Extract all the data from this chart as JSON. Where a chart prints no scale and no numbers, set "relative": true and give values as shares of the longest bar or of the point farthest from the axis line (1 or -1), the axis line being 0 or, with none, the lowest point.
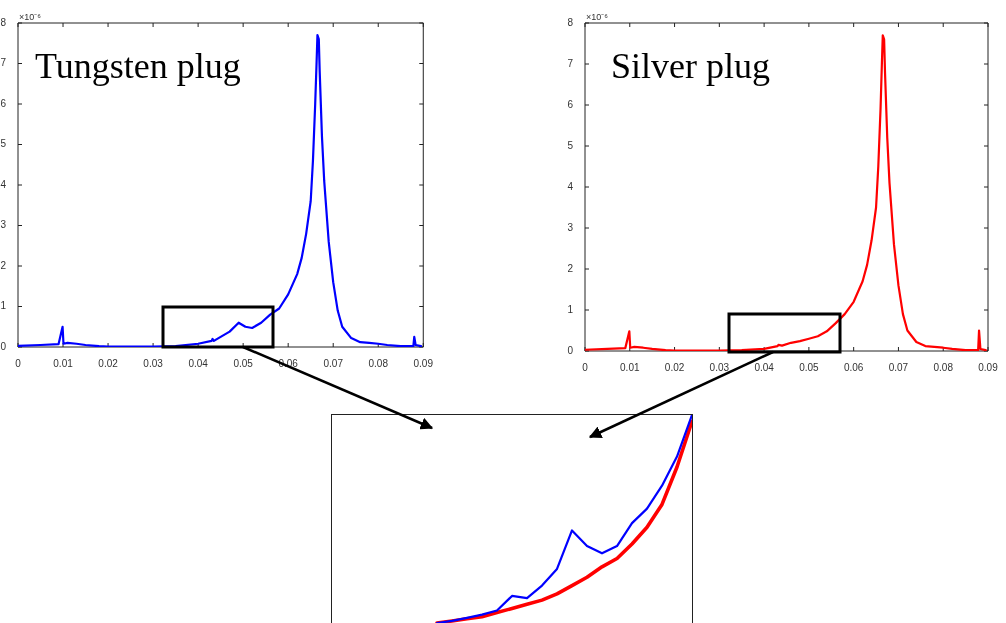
{
  "chart_data": [
    {
      "type": "line",
      "title": "Tungsten plug",
      "annotations": [
        "×10⁻⁶"
      ],
      "xlim": [
        0,
        0.09
      ],
      "xticks": [
        0,
        0.01,
        0.02,
        0.03,
        0.04,
        0.05,
        0.06,
        0.07,
        0.08,
        0.09
      ],
      "ylim": [
        0,
        8
      ],
      "yticks": [
        0,
        1,
        2,
        3,
        4,
        5,
        6,
        7,
        8
      ],
      "series": [
        {
          "color": "#0000ff",
          "x": [
            0,
            0.005,
            0.009,
            0.0099,
            0.0101,
            0.011,
            0.013,
            0.015,
            0.018,
            0.02,
            0.025,
            0.03,
            0.035,
            0.04,
            0.043,
            0.0432,
            0.0435,
            0.045,
            0.047,
            0.049,
            0.0505,
            0.052,
            0.054,
            0.056,
            0.058,
            0.06,
            0.062,
            0.063,
            0.064,
            0.065,
            0.0655,
            0.066,
            0.0663,
            0.0665,
            0.0668,
            0.067,
            0.0675,
            0.068,
            0.069,
            0.07,
            0.071,
            0.072,
            0.074,
            0.076,
            0.078,
            0.08,
            0.082,
            0.085,
            0.0878,
            0.088,
            0.0883,
            0.0895
          ],
          "values": [
            0.03,
            0.05,
            0.07,
            0.5,
            0.08,
            0.1,
            0.08,
            0.05,
            0.02,
            0.01,
            0.01,
            0.01,
            0.02,
            0.08,
            0.15,
            0.2,
            0.15,
            0.25,
            0.38,
            0.6,
            0.5,
            0.47,
            0.6,
            0.8,
            0.95,
            1.3,
            1.8,
            2.2,
            2.8,
            3.6,
            4.6,
            6.0,
            7.0,
            7.7,
            7.6,
            6.8,
            5.2,
            4.1,
            2.6,
            1.6,
            0.9,
            0.5,
            0.22,
            0.12,
            0.1,
            0.08,
            0.05,
            0.02,
            0.02,
            0.25,
            0.05,
            0.02
          ]
        }
      ]
    },
    {
      "type": "line",
      "title": "Silver plug",
      "annotations": [
        "×10⁻⁶"
      ],
      "xlim": [
        0,
        0.09
      ],
      "xticks": [
        0,
        0.01,
        0.02,
        0.03,
        0.04,
        0.05,
        0.06,
        0.07,
        0.08,
        0.09
      ],
      "ylim": [
        0,
        8
      ],
      "yticks": [
        0,
        1,
        2,
        3,
        4,
        5,
        6,
        7,
        8
      ],
      "series": [
        {
          "color": "#ff0000",
          "x": [
            0,
            0.005,
            0.009,
            0.0099,
            0.0101,
            0.011,
            0.013,
            0.015,
            0.018,
            0.02,
            0.025,
            0.03,
            0.035,
            0.04,
            0.043,
            0.0432,
            0.044,
            0.046,
            0.048,
            0.05,
            0.052,
            0.054,
            0.056,
            0.058,
            0.06,
            0.062,
            0.063,
            0.064,
            0.065,
            0.0655,
            0.066,
            0.0663,
            0.0665,
            0.0668,
            0.067,
            0.0675,
            0.068,
            0.069,
            0.07,
            0.071,
            0.072,
            0.074,
            0.076,
            0.078,
            0.08,
            0.082,
            0.085,
            0.0878,
            0.088,
            0.0883,
            0.0895
          ],
          "values": [
            0.03,
            0.05,
            0.07,
            0.48,
            0.08,
            0.1,
            0.08,
            0.05,
            0.02,
            0.01,
            0.01,
            0.01,
            0.02,
            0.05,
            0.12,
            0.15,
            0.13,
            0.2,
            0.24,
            0.3,
            0.36,
            0.48,
            0.68,
            0.9,
            1.2,
            1.7,
            2.1,
            2.7,
            3.5,
            4.5,
            5.9,
            7.0,
            7.7,
            7.6,
            6.8,
            5.2,
            4.1,
            2.6,
            1.6,
            0.9,
            0.5,
            0.22,
            0.12,
            0.1,
            0.08,
            0.05,
            0.02,
            0.02,
            0.5,
            0.05,
            0.02
          ]
        }
      ]
    },
    {
      "type": "line",
      "relative": true,
      "categories": [
        null,
        null,
        null,
        null,
        null,
        null,
        null,
        null,
        null,
        null,
        null,
        null,
        null,
        null,
        null,
        null,
        null,
        null,
        null,
        null,
        null,
        null,
        null,
        null,
        null
      ],
      "series": [
        {
          "color": "#0000ff",
          "values": [
            null,
            null,
            null,
            null,
            null,
            null,
            null,
            0,
            0.01,
            0.025,
            0.04,
            0.06,
            0.13,
            0.12,
            0.18,
            0.26,
            0.445,
            0.37,
            0.335,
            0.37,
            0.48,
            0.55,
            0.66,
            0.8,
            1
          ]
        },
        {
          "color": "#ff0000",
          "values": [
            null,
            null,
            null,
            null,
            null,
            null,
            null,
            0,
            0.01,
            0.02,
            0.03,
            0.05,
            0.07,
            0.09,
            0.11,
            0.14,
            0.18,
            0.22,
            0.27,
            0.31,
            0.38,
            0.46,
            0.57,
            0.75,
            0.97
          ]
        }
      ]
    }
  ]
}
